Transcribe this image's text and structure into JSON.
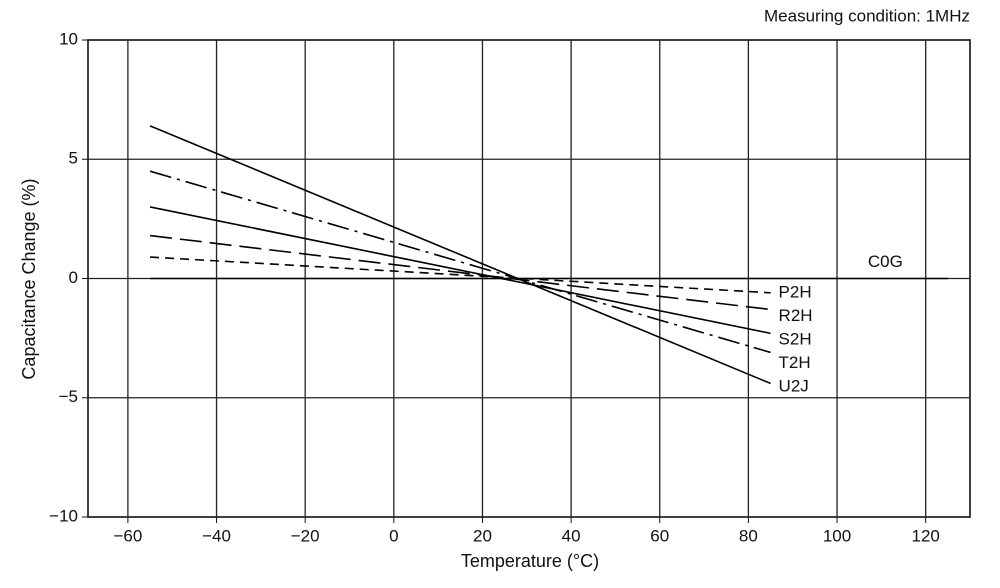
{
  "chart_data": {
    "type": "line",
    "annotation": "Measuring condition: 1MHz",
    "x_label": "Temperature (°C)",
    "y_label": "Capacitance Change (%)",
    "x": [
      -55,
      85,
      125
    ],
    "series": [
      {
        "name": "C0G",
        "color": "#000000",
        "dash": "solid",
        "values": [
          0,
          0,
          0
        ]
      },
      {
        "name": "P2H",
        "color": "#000000",
        "dash": "dashed",
        "values": [
          0.9,
          -0.6,
          null
        ]
      },
      {
        "name": "R2H",
        "color": "#000000",
        "dash": "long-dash",
        "values": [
          1.8,
          -1.3,
          null
        ]
      },
      {
        "name": "S2H",
        "color": "#000000",
        "dash": "solid",
        "values": [
          3.0,
          -2.3,
          null
        ]
      },
      {
        "name": "T2H",
        "color": "#000000",
        "dash": "dash-dot",
        "values": [
          4.5,
          -3.1,
          null
        ]
      },
      {
        "name": "U2J",
        "color": "#000000",
        "dash": "solid",
        "values": [
          6.4,
          -4.4,
          null
        ]
      }
    ],
    "xlim": [
      -69,
      130
    ],
    "ylim": [
      -10,
      10
    ],
    "xticks": [
      {
        "value": -60,
        "label": "−60"
      },
      {
        "value": -40,
        "label": "−40"
      },
      {
        "value": -20,
        "label": "−20"
      },
      0,
      20,
      40,
      60,
      80,
      100,
      120
    ],
    "yticks": [
      {
        "value": -10,
        "label": "−10"
      },
      {
        "value": -5,
        "label": "−5"
      },
      0,
      5,
      10
    ],
    "grid": true
  }
}
